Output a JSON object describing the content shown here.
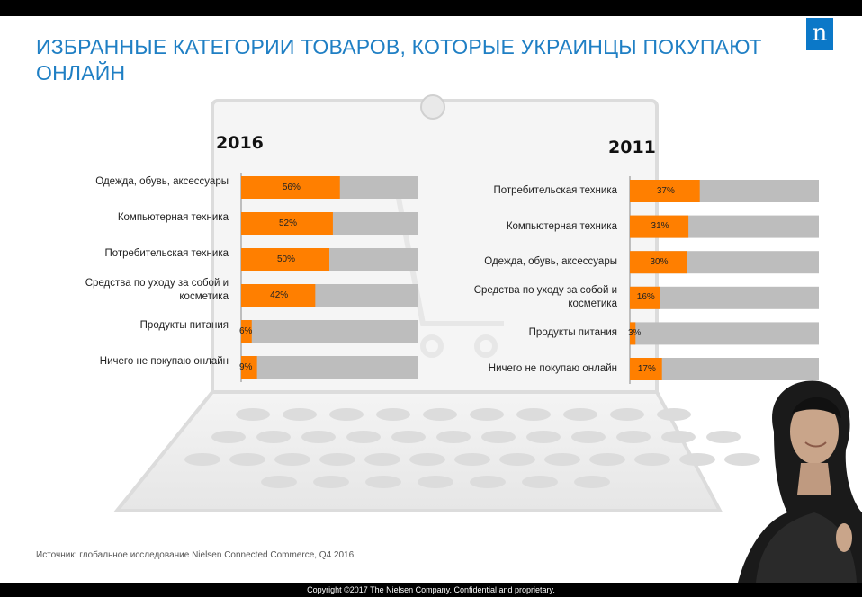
{
  "header": {
    "title": "ИЗБРАННЫЕ КАТЕГОРИИ ТОВАРОВ, КОТОРЫЕ УКРАИНЦЫ ПОКУПАЮТ ОНЛАЙН",
    "logo": "n"
  },
  "footer": {
    "source": "Источник: глобальное исследование Nielsen Connected Commerce, Q4 2016",
    "copyright": "Copyright ©2017 The Nielsen Company. Confidential and proprietary."
  },
  "colors": {
    "accent": "#ff7f00",
    "track": "#bdbdbd",
    "title": "#1f7fc4"
  },
  "chart_data": [
    {
      "type": "bar",
      "title": "2016",
      "orientation": "horizontal",
      "xlim": [
        0,
        100
      ],
      "categories": [
        "Одежда, обувь, аксессуары",
        "Компьютерная техника",
        "Потребительская техника",
        "Средства по уходу за собой и косметика",
        "Продукты питания",
        "Ничего не покупаю онлайн"
      ],
      "values": [
        56,
        52,
        50,
        42,
        6,
        9
      ],
      "labels": [
        "56%",
        "52%",
        "50%",
        "42%",
        "6%",
        "9%"
      ]
    },
    {
      "type": "bar",
      "title": "2011",
      "orientation": "horizontal",
      "xlim": [
        0,
        100
      ],
      "categories": [
        "Потребительская техника",
        "Компьютерная техника",
        "Одежда, обувь, аксессуары",
        "Средства по уходу за собой и косметика",
        "Продукты питания",
        "Ничего не покупаю онлайн"
      ],
      "values": [
        37,
        31,
        30,
        16,
        3,
        17
      ],
      "labels": [
        "37%",
        "31%",
        "30%",
        "16%",
        "3%",
        "17%"
      ]
    }
  ]
}
